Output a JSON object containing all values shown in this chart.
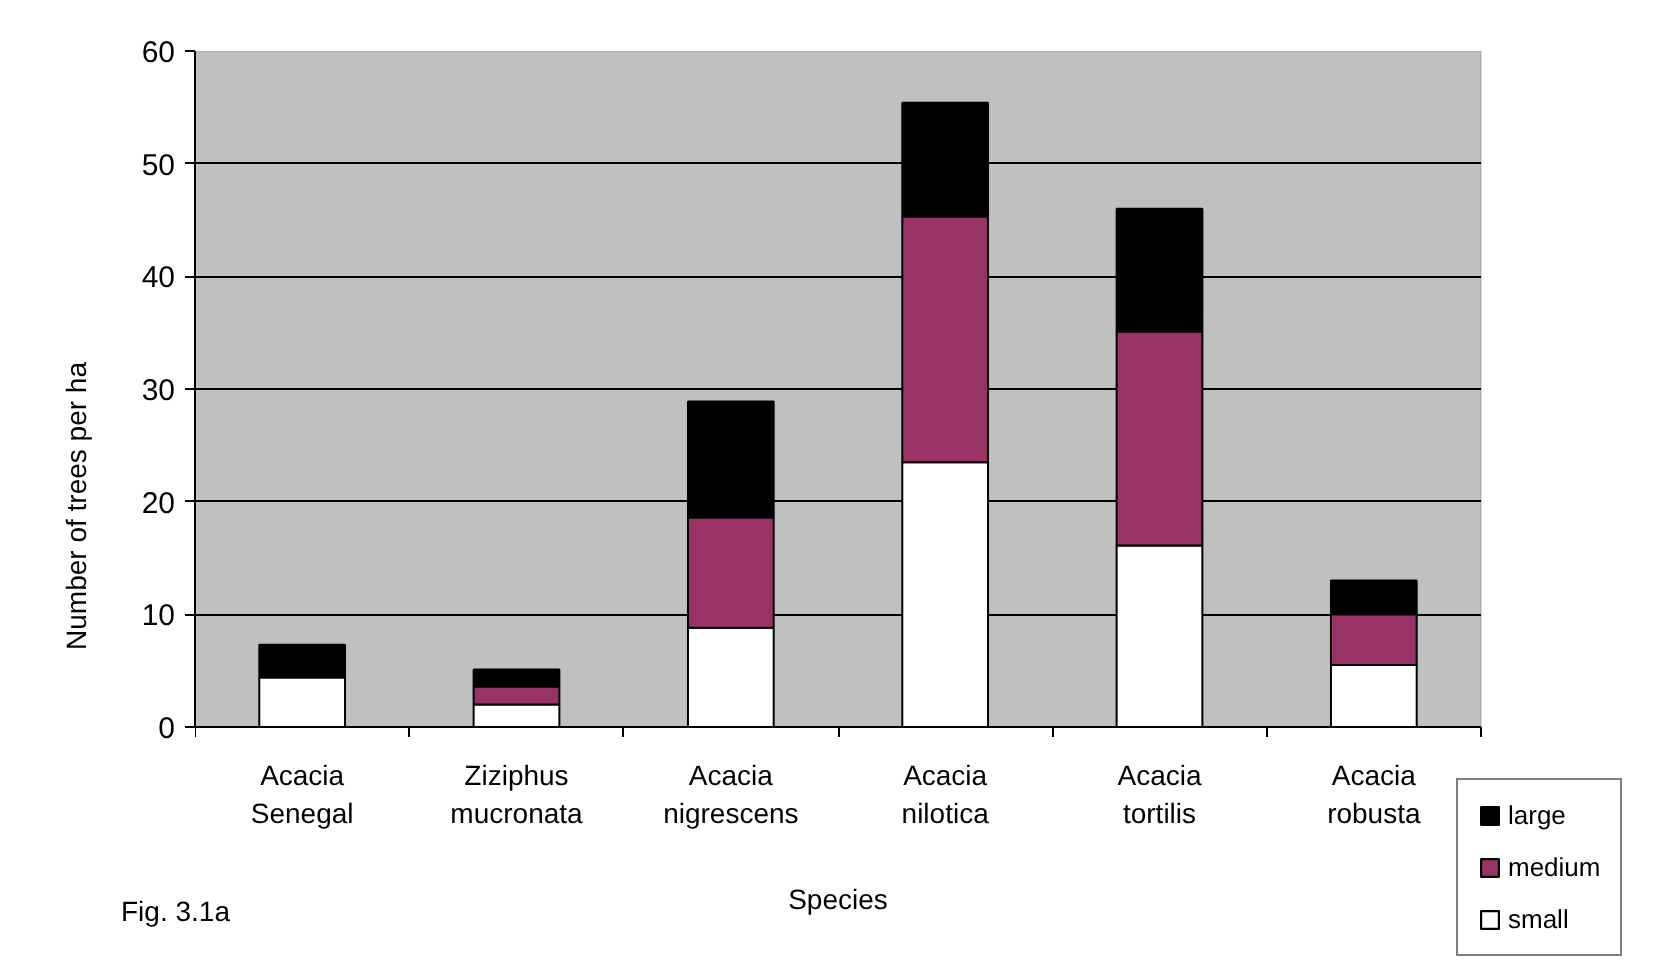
{
  "chart_data": {
    "type": "bar",
    "stacked": true,
    "xlabel": "Species",
    "ylabel": "Number of trees per ha",
    "annotations": [
      "Fig. 3.1a"
    ],
    "categories": [
      "Acacia Senegal",
      "Ziziphus mucronata",
      "Acacia nigrescens",
      "Acacia nilotica",
      "Acacia tortilis",
      "Acacia robusta"
    ],
    "series": [
      {
        "name": "small",
        "color": "#ffffff",
        "values": [
          4.4,
          2.0,
          8.8,
          23.5,
          16.1,
          5.5
        ]
      },
      {
        "name": "medium",
        "color": "#993366",
        "values": [
          null,
          1.6,
          9.8,
          21.8,
          19.0,
          4.5
        ]
      },
      {
        "name": "large",
        "color": "#000000",
        "values": [
          2.9,
          1.5,
          10.3,
          10.1,
          10.9,
          3.0
        ]
      }
    ],
    "ylim": [
      0,
      60
    ],
    "yticks": [
      0,
      10,
      20,
      30,
      40,
      50,
      60
    ],
    "grid": "y",
    "legend": "bottom right"
  }
}
